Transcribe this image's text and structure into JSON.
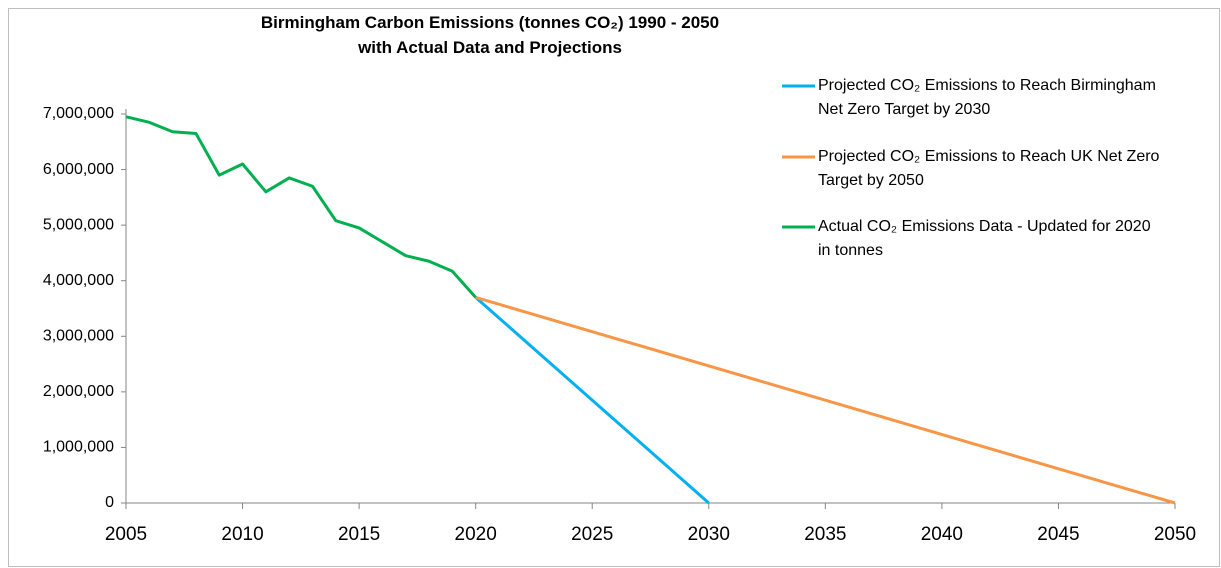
{
  "chart_data": {
    "type": "line",
    "title": "Birmingham Carbon Emissions (tonnes CO₂) 1990 - 2050 with Actual Data and Projections",
    "xlim": [
      2005,
      2050
    ],
    "xticks": [
      2005,
      2010,
      2015,
      2020,
      2025,
      2030,
      2035,
      2040,
      2045,
      2050
    ],
    "ylim": [
      0,
      7000000
    ],
    "yticks": [
      {
        "value": 0,
        "label": "0"
      },
      {
        "value": 1000000,
        "label": "1,000,000"
      },
      {
        "value": 2000000,
        "label": "2,000,000"
      },
      {
        "value": 3000000,
        "label": "3,000,000"
      },
      {
        "value": 4000000,
        "label": "4,000,000"
      },
      {
        "value": 5000000,
        "label": "5,000,000"
      },
      {
        "value": 6000000,
        "label": "6,000,000"
      },
      {
        "value": 7000000,
        "label": "7,000,000"
      }
    ],
    "grid": false,
    "legend": "right",
    "series": [
      {
        "name": "Projected CO₂  Emissions to Reach Birmingham Net Zero Target by 2030",
        "color": "#00b0f0",
        "x": [
          2020,
          2030
        ],
        "values": [
          3700000,
          0
        ]
      },
      {
        "name": "Projected CO₂  Emissions to Reach UK Net Zero Target by 2050",
        "color": "#f79646",
        "x": [
          2020,
          2050
        ],
        "values": [
          3700000,
          0
        ]
      },
      {
        "name": "Actual CO₂  Emissions Data - Updated for 2020 in tonnes",
        "color": "#00b050",
        "x": [
          2005,
          2006,
          2007,
          2008,
          2009,
          2010,
          2011,
          2012,
          2013,
          2014,
          2015,
          2016,
          2017,
          2018,
          2019,
          2020
        ],
        "values": [
          6950000,
          6850000,
          6680000,
          6650000,
          5900000,
          6100000,
          5600000,
          5850000,
          5700000,
          5080000,
          4950000,
          4700000,
          4450000,
          4350000,
          4170000,
          3700000
        ]
      }
    ]
  }
}
